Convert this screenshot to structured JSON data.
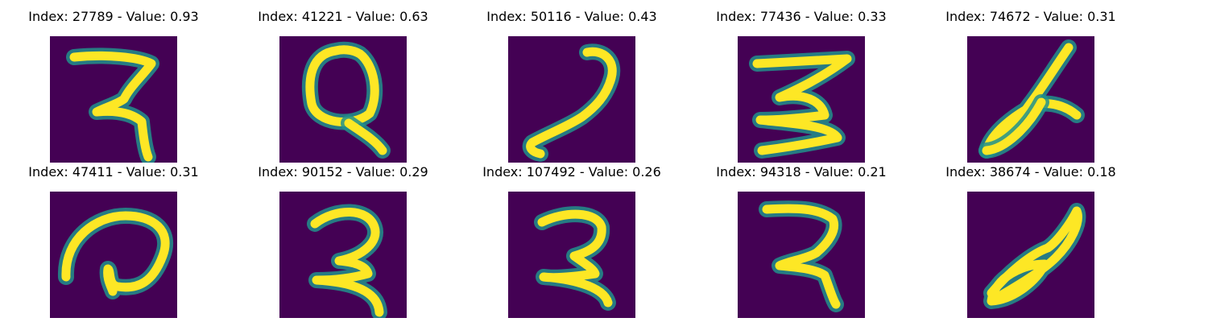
{
  "chart_data": {
    "type": "image_grid",
    "rows": 2,
    "cols": 5,
    "colors": {
      "background": "#440154",
      "mid": "#21918c",
      "stroke": "#fde725"
    },
    "panels": [
      {
        "title": "Index: 27789 - Value: 0.93",
        "glyph": "seven-hook"
      },
      {
        "title": "Index: 41221 - Value: 0.63",
        "glyph": "q-loop"
      },
      {
        "title": "Index: 50116 - Value: 0.43",
        "glyph": "bent-stroke"
      },
      {
        "title": "Index: 77436 - Value: 0.33",
        "glyph": "three-scribble"
      },
      {
        "title": "Index: 74672 - Value: 0.31",
        "glyph": "slanted-loop"
      },
      {
        "title": "Index: 47411 - Value: 0.31",
        "glyph": "curl-arc"
      },
      {
        "title": "Index: 90152 - Value: 0.29",
        "glyph": "two-curve"
      },
      {
        "title": "Index: 107492 - Value: 0.26",
        "glyph": "two-bold"
      },
      {
        "title": "Index: 94318 - Value: 0.21",
        "glyph": "seven-curve"
      },
      {
        "title": "Index: 38674 - Value: 0.18",
        "glyph": "figure-eight"
      }
    ]
  }
}
